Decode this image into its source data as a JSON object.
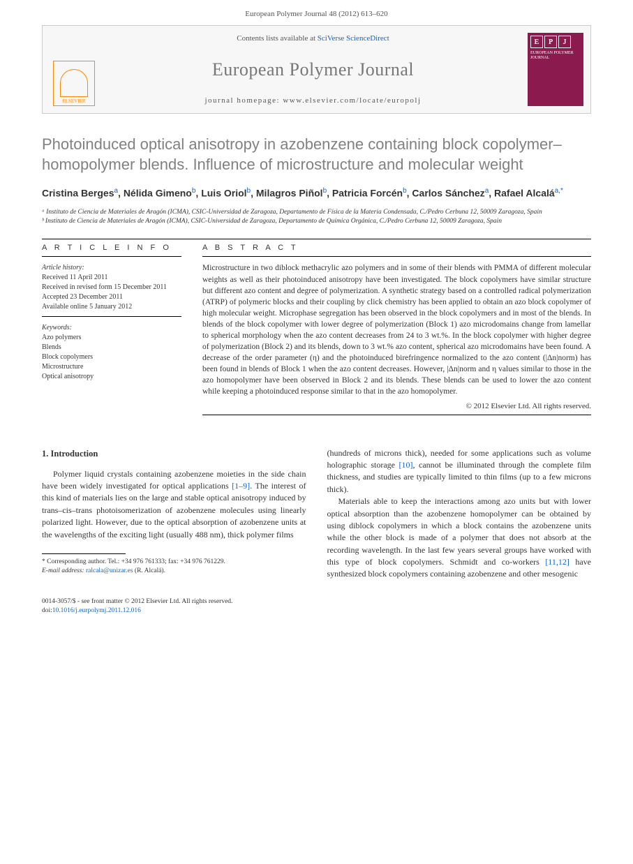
{
  "header": {
    "citation": "European Polymer Journal 48 (2012) 613–620"
  },
  "masthead": {
    "contents_prefix": "Contents lists available at ",
    "contents_link": "SciVerse ScienceDirect",
    "journal_name": "European Polymer Journal",
    "homepage_prefix": "journal homepage: ",
    "homepage_url": "www.elsevier.com/locate/europolj",
    "publisher": "ELSEVIER",
    "cover_letters": [
      "E",
      "P",
      "J"
    ],
    "cover_title": "EUROPEAN POLYMER JOURNAL"
  },
  "title": "Photoinduced optical anisotropy in azobenzene containing block copolymer–homopolymer blends. Influence of microstructure and molecular weight",
  "authors_html": "Cristina Berges<sup>a</sup>, Nélida Gimeno<sup>b</sup>, Luis Oriol<sup>b</sup>, Milagros Piñol<sup>b</sup>, Patricia Forcén<sup>b</sup>, Carlos Sánchez<sup>a</sup>, Rafael Alcalá<sup>a,*</sup>",
  "affiliations": [
    "ᵃ Instituto de Ciencia de Materiales de Aragón (ICMA), CSIC-Universidad de Zaragoza, Departamento de Física de la Materia Condensada, C./Pedro Cerbuna 12, 50009 Zaragoza, Spain",
    "ᵇ Instituto de Ciencia de Materiales de Aragón (ICMA), CSIC-Universidad de Zaragoza, Departamento de Química Orgánica, C./Pedro Cerbuna 12, 50009 Zaragoza, Spain"
  ],
  "info": {
    "heading": "A R T I C L E   I N F O",
    "history_title": "Article history:",
    "history": [
      "Received 11 April 2011",
      "Received in revised form 15 December 2011",
      "Accepted 23 December 2011",
      "Available online 5 January 2012"
    ],
    "keywords_title": "Keywords:",
    "keywords": [
      "Azo polymers",
      "Blends",
      "Block copolymers",
      "Microstructure",
      "Optical anisotropy"
    ]
  },
  "abstract": {
    "heading": "A B S T R A C T",
    "text": "Microstructure in two diblock methacrylic azo polymers and in some of their blends with PMMA of different molecular weights as well as their photoinduced anisotropy have been investigated. The block copolymers have similar structure but different azo content and degree of polymerization. A synthetic strategy based on a controlled radical polymerization (ATRP) of polymeric blocks and their coupling by click chemistry has been applied to obtain an azo block copolymer of high molecular weight. Microphase segregation has been observed in the block copolymers and in most of the blends. In blends of the block copolymer with lower degree of polymerization (Block 1) azo microdomains change from lamellar to spherical morphology when the azo content decreases from 24 to 3 wt.%. In the block copolymer with higher degree of polymerization (Block 2) and its blends, down to 3 wt.% azo content, spherical azo microdomains have been found. A decrease of the order parameter (η) and the photoinduced birefringence normalized to the azo content (|Δn|norm) has been found in blends of Block 1 when the azo content decreases. However, |Δn|norm and η values similar to those in the azo homopolymer have been observed in Block 2 and its blends. These blends can be used to lower the azo content while keeping a photoinduced response similar to that in the azo homopolymer.",
    "copyright": "© 2012 Elsevier Ltd. All rights reserved."
  },
  "body": {
    "section_number": "1.",
    "section_title": "Introduction",
    "left_para": "Polymer liquid crystals containing azobenzene moieties in the side chain have been widely investigated for optical applications ",
    "left_ref1": "[1–9]",
    "left_after_ref1": ". The interest of this kind of materials lies on the large and stable optical anisotropy induced by trans–cis–trans photoisomerization of azobenzene molecules using linearly polarized light. However, due to the optical absorption of azobenzene units at the wavelengths of the exciting light (usually 488 nm), thick polymer films",
    "right_para1_a": "(hundreds of microns thick), needed for some applications such as volume holographic storage ",
    "right_ref2": "[10]",
    "right_para1_b": ", cannot be illuminated through the complete film thickness, and studies are typically limited to thin films (up to a few microns thick).",
    "right_para2_a": "Materials able to keep the interactions among azo units but with lower optical absorption than the azobenzene homopolymer can be obtained by using diblock copolymers in which a block contains the azobenzene units while the other block is made of a polymer that does not absorb at the recording wavelength. In the last few years several groups have worked with this type of block copolymers. Schmidt and co-workers ",
    "right_ref3": "[11,12]",
    "right_para2_b": " have synthesized block copolymers containing azobenzene and other mesogenic"
  },
  "footnote": {
    "corr": "* Corresponding author. Tel.: +34 976 761333; fax: +34 976 761229.",
    "email_label": "E-mail address: ",
    "email": "ralcala@unizar.es",
    "email_name": " (R. Alcalá)."
  },
  "front_matter": {
    "line1": "0014-3057/$ - see front matter © 2012 Elsevier Ltd. All rights reserved.",
    "doi_label": "doi:",
    "doi": "10.1016/j.eurpolymj.2011.12.016"
  }
}
